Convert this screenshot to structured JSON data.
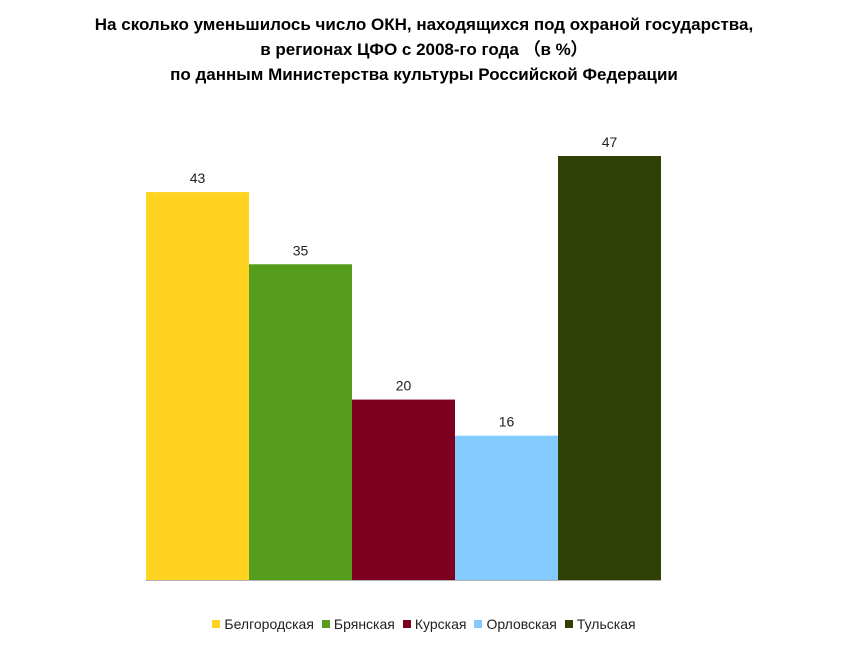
{
  "chart_data": {
    "type": "bar",
    "title_lines": [
      "На сколько уменьшилось число ОКН, находящихся под охраной государства,",
      "в регионах ЦФО с 2008-го года （в %）",
      "по данным Министерства культуры Российской Федерации"
    ],
    "categories": [
      "Белгородская",
      "Брянская",
      "Курская",
      "Орловская",
      "Тульская"
    ],
    "values": [
      43,
      35,
      20,
      16,
      47
    ],
    "data_labels": [
      "43",
      "35",
      "20",
      "16",
      "47"
    ],
    "colors": [
      "#FFD320",
      "#579D1C",
      "#7E0021",
      "#83CAFF",
      "#314004"
    ],
    "ylim": [
      0,
      47
    ],
    "legend_position": "bottom",
    "grid": false
  }
}
